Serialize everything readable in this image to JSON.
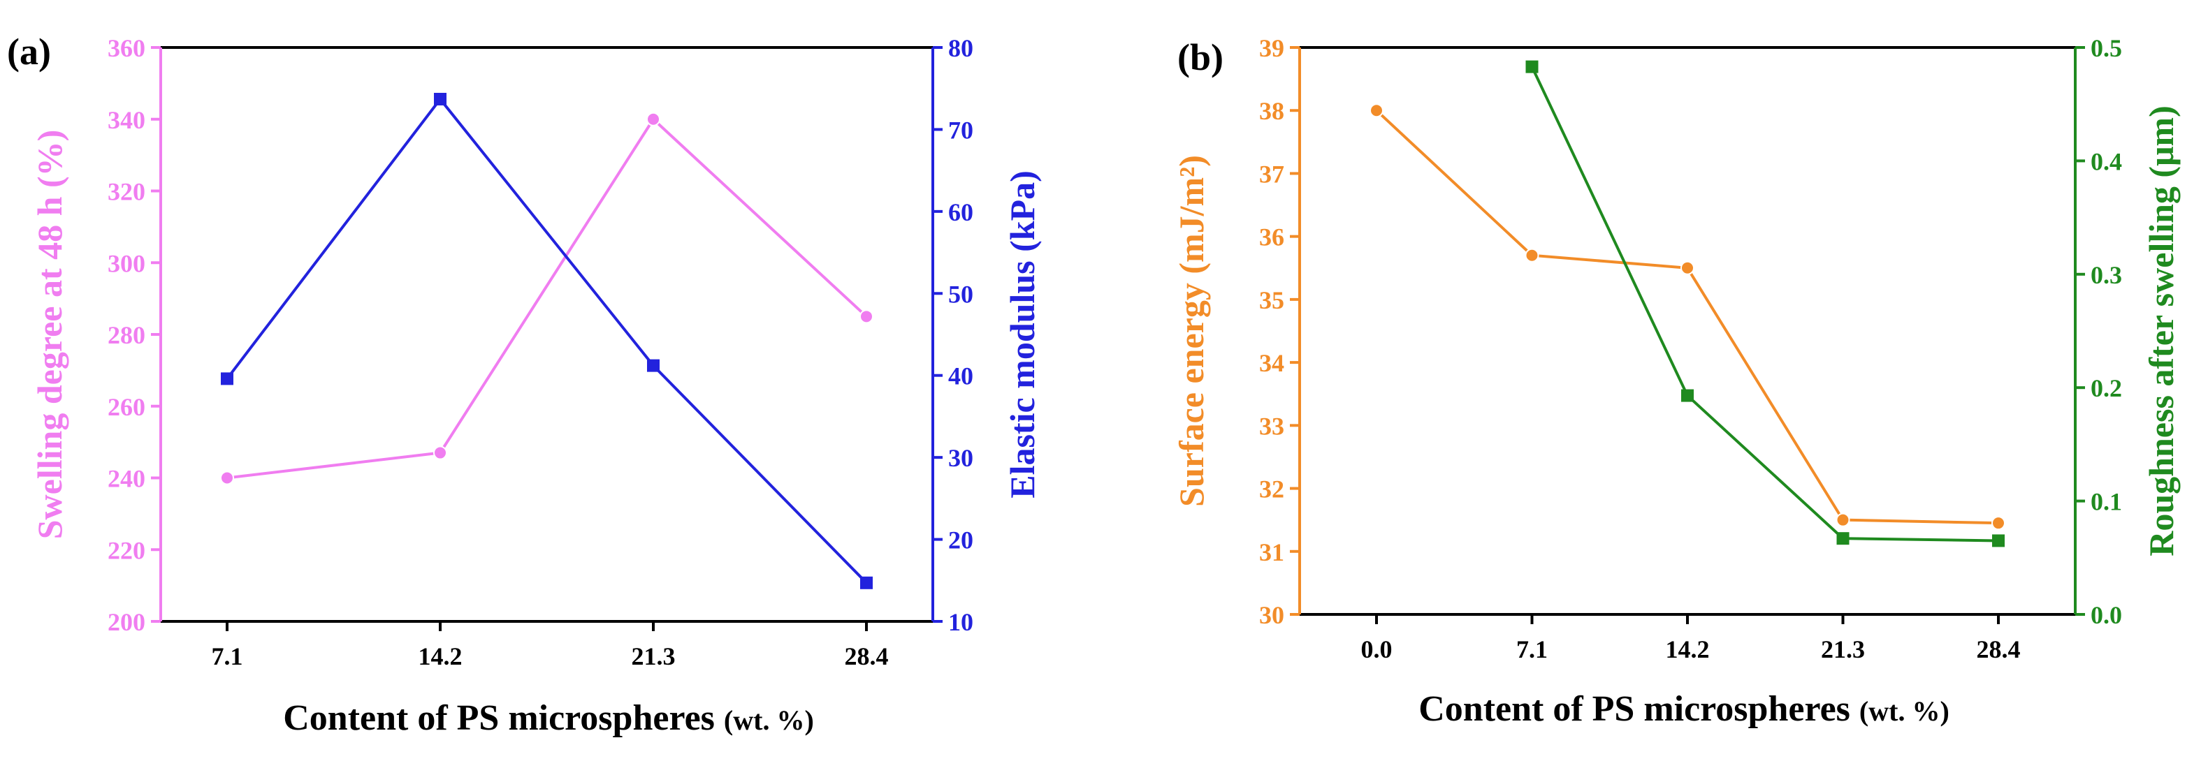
{
  "chart_data": [
    {
      "type": "line",
      "panel": "(a)",
      "xlabel_main": "Content of PS microspheres",
      "xlabel_unit": "(wt. %)",
      "categories": [
        "7.1",
        "14.2",
        "21.3",
        "28.4"
      ],
      "left_axis": {
        "label": "Swelling degree at 48 h (%)",
        "color": "#f07df0",
        "ylim": [
          200,
          360
        ],
        "ticks": [
          200,
          220,
          240,
          260,
          280,
          300,
          320,
          340,
          360
        ]
      },
      "right_axis": {
        "label": "Elastic modulus (kPa)",
        "color": "#2222dd",
        "ylim": [
          10,
          80
        ],
        "ticks": [
          10,
          20,
          30,
          40,
          50,
          60,
          70,
          80
        ]
      },
      "series": [
        {
          "name": "Swelling degree",
          "axis": "left",
          "marker": "circle",
          "color": "#f07df0",
          "values": [
            240,
            247,
            340,
            285
          ]
        },
        {
          "name": "Elastic modulus",
          "axis": "right",
          "marker": "square",
          "color": "#2222dd",
          "values": [
            39.6,
            73.7,
            41.2,
            14.7
          ]
        }
      ]
    },
    {
      "type": "line",
      "panel": "(b)",
      "xlabel_main": "Content of PS microspheres",
      "xlabel_unit": "(wt. %)",
      "categories": [
        "0.0",
        "7.1",
        "14.2",
        "21.3",
        "28.4"
      ],
      "left_axis": {
        "label": "Surface energy (mJ/m²)",
        "color": "#f28c28",
        "ylim": [
          30,
          39
        ],
        "ticks": [
          30,
          31,
          32,
          33,
          34,
          35,
          36,
          37,
          38,
          39
        ]
      },
      "right_axis": {
        "label": "Roughness after swelling (μm)",
        "color": "#1f8a1f",
        "ylim": [
          0.0,
          0.5
        ],
        "ticks": [
          "0.0",
          "0.1",
          "0.2",
          "0.3",
          "0.4",
          "0.5"
        ]
      },
      "series": [
        {
          "name": "Surface energy",
          "axis": "left",
          "marker": "circle",
          "color": "#f28c28",
          "values": [
            38.0,
            35.7,
            35.5,
            31.5,
            31.45
          ]
        },
        {
          "name": "Roughness after swelling",
          "axis": "right",
          "marker": "square",
          "color": "#1f8a1f",
          "values": [
            null,
            0.483,
            0.193,
            0.067,
            0.065
          ]
        }
      ]
    }
  ]
}
